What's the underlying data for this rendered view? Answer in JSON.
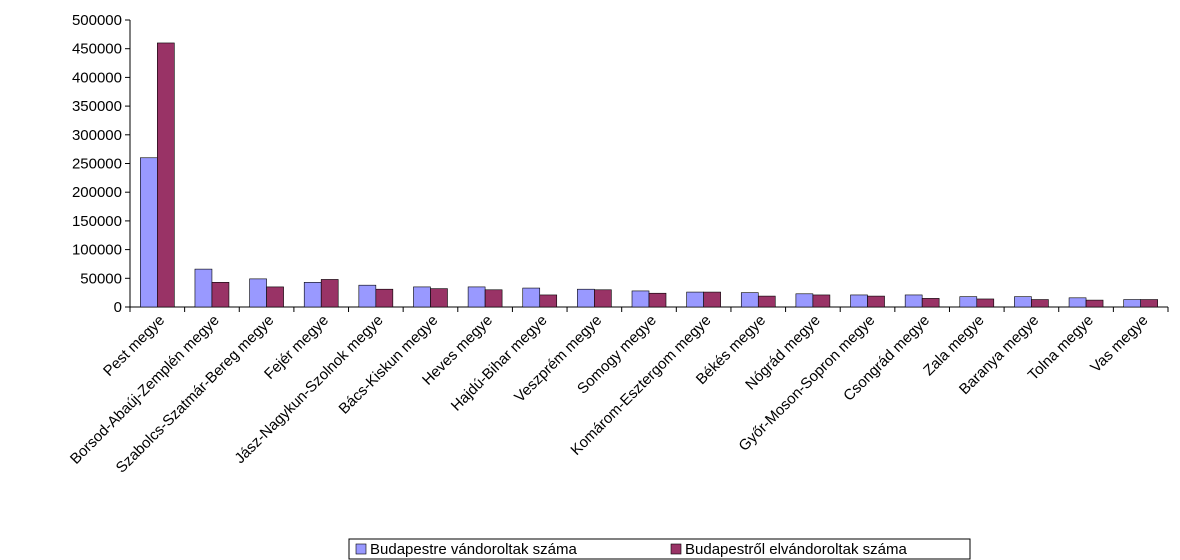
{
  "chart_data": {
    "type": "bar",
    "title": "",
    "xlabel": "",
    "ylabel": "",
    "ylim": [
      0,
      500000
    ],
    "yticks": [
      0,
      50000,
      100000,
      150000,
      200000,
      250000,
      300000,
      350000,
      400000,
      450000,
      500000
    ],
    "grid": false,
    "legend_position": "bottom",
    "categories": [
      "Pest megye",
      "Borsod-Abaúj-Zemplén megye",
      "Szabolcs-Szatmár-Bereg megye",
      "Fejér megye",
      "Jász-Nagykun-Szolnok megye",
      "Bács-Kiskun megye",
      "Heves megye",
      "Hajdú-Bihar megye",
      "Veszprém megye",
      "Somogy megye",
      "Komárom-Esztergom megye",
      "Békés megye",
      "Nógrád megye",
      "Győr-Moson-Sopron megye",
      "Csongrád megye",
      "Zala megye",
      "Baranya megye",
      "Tolna megye",
      "Vas megye"
    ],
    "series": [
      {
        "name": "Budapestre vándoroltak száma",
        "color": "#9999FF",
        "values": [
          260000,
          66000,
          49000,
          43000,
          38000,
          35000,
          35000,
          33000,
          31000,
          28000,
          26000,
          25000,
          23000,
          21000,
          21000,
          18000,
          18000,
          16000,
          13000
        ]
      },
      {
        "name": "Budapestről elvándoroltak száma",
        "color": "#993366",
        "values": [
          460000,
          43000,
          35000,
          48000,
          31000,
          32000,
          30000,
          21000,
          30000,
          24000,
          26000,
          19000,
          21000,
          19000,
          15000,
          14000,
          13000,
          12000,
          13000
        ]
      }
    ]
  }
}
